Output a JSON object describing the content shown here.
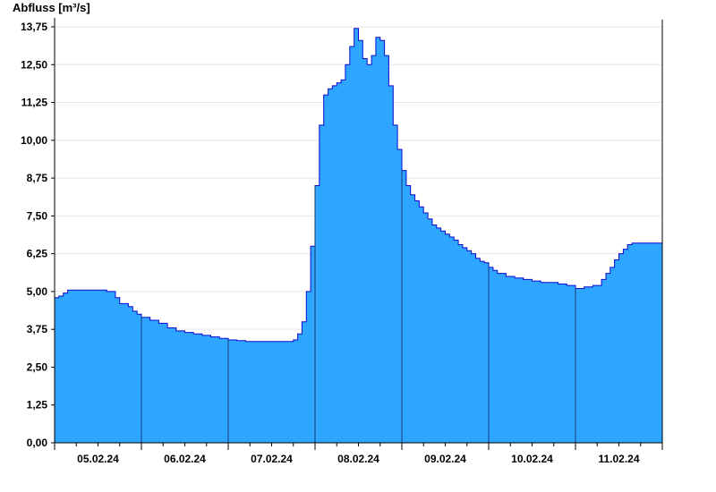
{
  "chart_data": {
    "type": "area",
    "ylabel": "Abfluss [m³/s]",
    "ylim": [
      0,
      13.75
    ],
    "yticks": [
      "0,00",
      "1,25",
      "2,50",
      "3,75",
      "5,00",
      "6,25",
      "7,50",
      "8,75",
      "10,00",
      "11,25",
      "12,50",
      "13,75"
    ],
    "ytick_values": [
      0,
      1.25,
      2.5,
      3.75,
      5.0,
      6.25,
      7.5,
      8.75,
      10.0,
      11.25,
      12.5,
      13.75
    ],
    "xlabels": [
      "05.02.24",
      "06.02.24",
      "07.02.24",
      "08.02.24",
      "09.02.24",
      "10.02.24",
      "11.02.24"
    ],
    "xlim_days": [
      4.0,
      11.0
    ],
    "grid": true,
    "colors": {
      "fill": "#2EA6FF",
      "line": "#0A0AD0",
      "grid": "#e6e6e6",
      "separator": "#1a3a7a"
    },
    "series": [
      {
        "x_days": [
          4.0,
          4.05,
          4.1,
          4.15,
          4.2,
          4.3,
          4.4,
          4.5,
          4.6,
          4.7,
          4.75,
          4.8,
          4.85,
          4.9,
          4.95,
          5.0,
          5.1,
          5.2,
          5.3,
          5.4,
          5.5,
          5.6,
          5.7,
          5.8,
          5.9,
          6.0,
          6.1,
          6.2,
          6.3,
          6.4,
          6.5,
          6.6,
          6.7,
          6.75,
          6.8,
          6.85,
          6.9,
          6.95,
          7.0,
          7.05,
          7.1,
          7.15,
          7.2,
          7.25,
          7.3,
          7.35,
          7.4,
          7.45,
          7.5,
          7.55,
          7.6,
          7.65,
          7.7,
          7.75,
          7.8,
          7.85,
          7.9,
          7.95,
          8.0,
          8.05,
          8.1,
          8.15,
          8.2,
          8.25,
          8.3,
          8.35,
          8.4,
          8.45,
          8.5,
          8.55,
          8.6,
          8.65,
          8.7,
          8.75,
          8.8,
          8.85,
          8.9,
          8.95,
          9.0,
          9.05,
          9.1,
          9.2,
          9.3,
          9.4,
          9.5,
          9.6,
          9.7,
          9.8,
          9.9,
          10.0,
          10.1,
          10.2,
          10.3,
          10.35,
          10.4,
          10.45,
          10.5,
          10.55,
          10.6,
          10.65,
          10.7,
          10.75,
          10.8,
          10.85,
          10.9,
          10.95,
          11.0
        ],
        "values": [
          4.8,
          4.85,
          4.95,
          5.05,
          5.05,
          5.05,
          5.05,
          5.05,
          5.0,
          4.8,
          4.6,
          4.6,
          4.5,
          4.35,
          4.25,
          4.15,
          4.05,
          3.95,
          3.8,
          3.7,
          3.65,
          3.6,
          3.55,
          3.5,
          3.45,
          3.4,
          3.38,
          3.35,
          3.35,
          3.35,
          3.35,
          3.35,
          3.35,
          3.4,
          3.6,
          4.0,
          5.0,
          6.5,
          8.5,
          10.5,
          11.5,
          11.7,
          11.8,
          11.9,
          12.0,
          12.5,
          13.1,
          13.7,
          13.3,
          12.7,
          12.5,
          12.8,
          13.4,
          13.3,
          12.8,
          11.8,
          10.5,
          9.7,
          9.0,
          8.5,
          8.2,
          8.0,
          7.8,
          7.6,
          7.4,
          7.2,
          7.1,
          7.0,
          6.9,
          6.8,
          6.7,
          6.55,
          6.45,
          6.35,
          6.25,
          6.1,
          6.0,
          5.95,
          5.8,
          5.7,
          5.6,
          5.5,
          5.45,
          5.4,
          5.35,
          5.3,
          5.3,
          5.25,
          5.2,
          5.1,
          5.15,
          5.2,
          5.4,
          5.6,
          5.8,
          6.05,
          6.25,
          6.4,
          6.55,
          6.6,
          6.6,
          6.6,
          6.6,
          6.6,
          6.6,
          6.6,
          6.6
        ]
      }
    ]
  }
}
